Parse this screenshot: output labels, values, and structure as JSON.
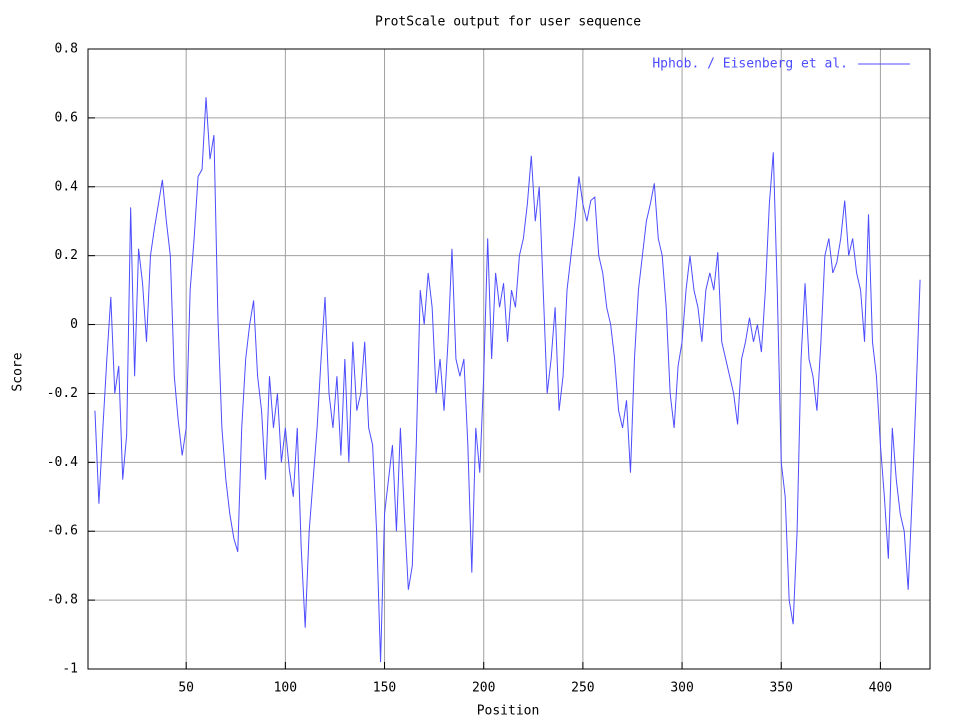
{
  "chart_data": {
    "type": "line",
    "title": "ProtScale output for user sequence",
    "xlabel": "Position",
    "ylabel": "Score",
    "legend": "top-right",
    "grid": true,
    "xlim": [
      0.5,
      425
    ],
    "ylim": [
      -1,
      0.8
    ],
    "xticks": [
      50,
      100,
      150,
      200,
      250,
      300,
      350,
      400
    ],
    "yticks": [
      0.8,
      0.6,
      0.4,
      0.2,
      0,
      -0.2,
      -0.4,
      -0.6,
      -0.8,
      -1
    ],
    "x": [
      4,
      6,
      8,
      10,
      12,
      14,
      16,
      18,
      20,
      22,
      24,
      26,
      28,
      30,
      32,
      34,
      36,
      38,
      40,
      42,
      44,
      46,
      48,
      50,
      52,
      54,
      56,
      58,
      60,
      62,
      64,
      66,
      68,
      70,
      72,
      74,
      76,
      78,
      80,
      82,
      84,
      86,
      88,
      90,
      92,
      94,
      96,
      98,
      100,
      102,
      104,
      106,
      108,
      110,
      112,
      114,
      116,
      118,
      120,
      122,
      124,
      126,
      128,
      130,
      132,
      134,
      136,
      138,
      140,
      142,
      144,
      146,
      148,
      150,
      152,
      154,
      156,
      158,
      160,
      162,
      164,
      166,
      168,
      170,
      172,
      174,
      176,
      178,
      180,
      182,
      184,
      186,
      188,
      190,
      192,
      194,
      196,
      198,
      200,
      202,
      204,
      206,
      208,
      210,
      212,
      214,
      216,
      218,
      220,
      222,
      224,
      226,
      228,
      230,
      232,
      234,
      236,
      238,
      240,
      242,
      244,
      246,
      248,
      250,
      252,
      254,
      256,
      258,
      260,
      262,
      264,
      266,
      268,
      270,
      272,
      274,
      276,
      278,
      280,
      282,
      284,
      286,
      288,
      290,
      292,
      294,
      296,
      298,
      300,
      302,
      304,
      306,
      308,
      310,
      312,
      314,
      316,
      318,
      320,
      322,
      324,
      326,
      328,
      330,
      332,
      334,
      336,
      338,
      340,
      342,
      344,
      346,
      348,
      350,
      352,
      354,
      356,
      358,
      360,
      362,
      364,
      366,
      368,
      370,
      372,
      374,
      376,
      378,
      380,
      382,
      384,
      386,
      388,
      390,
      392,
      394,
      396,
      398,
      400,
      402,
      404,
      406,
      408,
      410,
      412,
      414,
      416,
      418,
      420
    ],
    "series": [
      {
        "name": "Hphob. / Eisenberg et al.",
        "color": "#4d4dff",
        "values": [
          -0.25,
          -0.52,
          -0.3,
          -0.1,
          0.08,
          -0.2,
          -0.12,
          -0.45,
          -0.32,
          0.34,
          -0.15,
          0.22,
          0.12,
          -0.05,
          0.2,
          0.28,
          0.35,
          0.42,
          0.3,
          0.2,
          -0.15,
          -0.28,
          -0.38,
          -0.3,
          0.1,
          0.25,
          0.43,
          0.45,
          0.66,
          0.48,
          0.55,
          0.02,
          -0.3,
          -0.45,
          -0.55,
          -0.62,
          -0.66,
          -0.3,
          -0.1,
          0.0,
          0.07,
          -0.15,
          -0.25,
          -0.45,
          -0.15,
          -0.3,
          -0.2,
          -0.4,
          -0.3,
          -0.42,
          -0.5,
          -0.3,
          -0.65,
          -0.88,
          -0.6,
          -0.45,
          -0.3,
          -0.1,
          0.08,
          -0.2,
          -0.3,
          -0.15,
          -0.38,
          -0.1,
          -0.4,
          -0.05,
          -0.25,
          -0.2,
          -0.05,
          -0.3,
          -0.35,
          -0.6,
          -0.98,
          -0.55,
          -0.45,
          -0.35,
          -0.6,
          -0.3,
          -0.55,
          -0.77,
          -0.7,
          -0.35,
          0.1,
          0.0,
          0.15,
          0.05,
          -0.2,
          -0.1,
          -0.25,
          -0.05,
          0.22,
          -0.1,
          -0.15,
          -0.1,
          -0.35,
          -0.72,
          -0.3,
          -0.43,
          -0.15,
          0.25,
          -0.1,
          0.15,
          0.05,
          0.12,
          -0.05,
          0.1,
          0.05,
          0.2,
          0.25,
          0.35,
          0.49,
          0.3,
          0.4,
          0.1,
          -0.2,
          -0.1,
          0.05,
          -0.25,
          -0.15,
          0.1,
          0.2,
          0.3,
          0.43,
          0.35,
          0.3,
          0.36,
          0.37,
          0.2,
          0.15,
          0.05,
          0.0,
          -0.1,
          -0.25,
          -0.3,
          -0.22,
          -0.43,
          -0.1,
          0.1,
          0.2,
          0.3,
          0.35,
          0.41,
          0.25,
          0.2,
          0.05,
          -0.2,
          -0.3,
          -0.12,
          -0.05,
          0.1,
          0.2,
          0.1,
          0.05,
          -0.05,
          0.1,
          0.15,
          0.1,
          0.21,
          -0.05,
          -0.1,
          -0.15,
          -0.2,
          -0.29,
          -0.1,
          -0.05,
          0.02,
          -0.05,
          0.0,
          -0.08,
          0.1,
          0.35,
          0.5,
          0.1,
          -0.4,
          -0.5,
          -0.8,
          -0.87,
          -0.6,
          -0.1,
          0.12,
          -0.1,
          -0.15,
          -0.25,
          -0.05,
          0.2,
          0.25,
          0.15,
          0.18,
          0.25,
          0.36,
          0.2,
          0.25,
          0.15,
          0.1,
          -0.05,
          0.32,
          -0.05,
          -0.15,
          -0.35,
          -0.5,
          -0.68,
          -0.3,
          -0.45,
          -0.55,
          -0.6,
          -0.77,
          -0.5,
          -0.2,
          0.13
        ]
      }
    ]
  }
}
